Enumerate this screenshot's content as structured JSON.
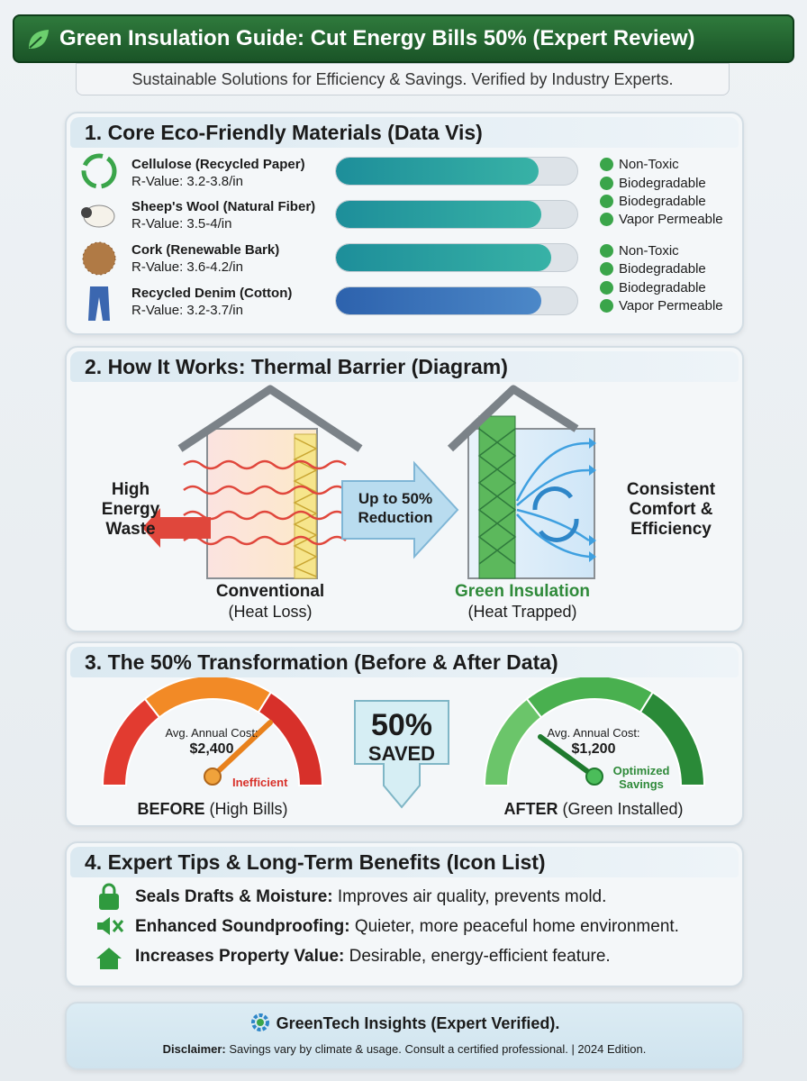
{
  "header": {
    "title": "Green Insulation Guide: Cut Energy Bills 50% (Expert Review)",
    "subtitle": "Sustainable Solutions for Efficiency & Savings. Verified by Industry Experts."
  },
  "materials": {
    "title": "1. Core Eco-Friendly Materials (Data Vis)",
    "items": [
      {
        "name": "Cellulose (Recycled Paper)",
        "rvalue": "R-Value: 3.2-3.8/in"
      },
      {
        "name": "Sheep's Wool (Natural Fiber)",
        "rvalue": "R-Value: 3.5-4/in"
      },
      {
        "name": "Cork (Renewable Bark)",
        "rvalue": "R-Value: 3.6-4.2/in"
      },
      {
        "name": "Recycled Denim (Cotton)",
        "rvalue": "R-Value: 3.2-3.7/in"
      }
    ],
    "features": [
      "Non-Toxic",
      "Biodegradable",
      "Biodegradable",
      "Vapor Permeable",
      "Non-Toxic",
      "Biodegradable",
      "Biodegradable",
      "Vapor Permeable"
    ]
  },
  "diagram": {
    "title": "2. How It Works: Thermal Barrier (Diagram)",
    "left_label": "High Energy Waste",
    "arrow_label": "Up to 50% Reduction",
    "right_label": "Consistent Comfort & Efficiency",
    "conventional": {
      "name": "Conventional",
      "caption": "(Heat Loss)"
    },
    "green": {
      "name": "Green Insulation",
      "caption": "(Heat Trapped)"
    }
  },
  "transformation": {
    "title": "3. The 50% Transformation (Before & After Data)",
    "before": {
      "cost_label": "Avg. Annual Cost:",
      "cost": "$2,400",
      "status": "Inefficient",
      "label": "BEFORE",
      "caption": "(High Bills)"
    },
    "badge": {
      "percent": "50%",
      "text": "SAVED"
    },
    "after": {
      "cost_label": "Avg. Annual Cost:",
      "cost": "$1,200",
      "status": "Optimized Savings",
      "label": "AFTER",
      "caption": "(Green Installed)"
    }
  },
  "tips": {
    "title": "4. Expert Tips & Long-Term Benefits (Icon List)",
    "items": [
      {
        "title": "Seals Drafts & Moisture:",
        "text": "Improves air quality, prevents mold."
      },
      {
        "title": "Enhanced Soundproofing:",
        "text": "Quieter, more peaceful home environment."
      },
      {
        "title": "Increases Property Value:",
        "text": "Desirable, energy-efficient feature."
      }
    ]
  },
  "footer": {
    "brand": "GreenTech Insights (Expert Verified).",
    "disclaimer_label": "Disclaimer:",
    "disclaimer": "Savings vary by climate & usage. Consult a certified professional. | 2024 Edition."
  }
}
